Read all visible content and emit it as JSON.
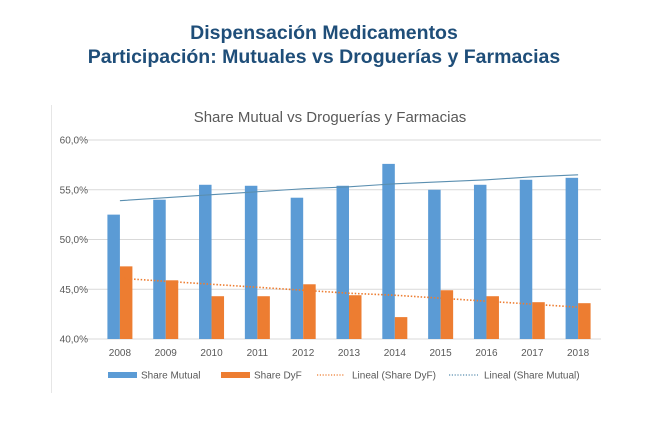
{
  "header": {
    "title_line1": "Dispensación Medicamentos",
    "title_line2": "Participación: Mutuales vs Droguerías y Farmacias"
  },
  "colors": {
    "title": "#1f4e79",
    "mutual": "#5b9bd5",
    "dyf": "#ed7d31",
    "trend_mutual": "#5b8fb0",
    "trend_dyf": "#ed7d31",
    "grid": "#d9d9d9",
    "text": "#595959"
  },
  "chart_data": {
    "type": "bar",
    "title": "Share Mutual vs Droguerías y Farmacias",
    "xlabel": "",
    "ylabel": "",
    "categories": [
      "2008",
      "2009",
      "2010",
      "2011",
      "2012",
      "2013",
      "2014",
      "2015",
      "2016",
      "2017",
      "2018"
    ],
    "series": [
      {
        "name": "Share Mutual",
        "kind": "bar",
        "values": [
          52.5,
          54.0,
          55.5,
          55.4,
          54.2,
          55.4,
          57.6,
          55.0,
          55.5,
          56.0,
          56.2
        ]
      },
      {
        "name": "Share DyF",
        "kind": "bar",
        "values": [
          47.3,
          45.9,
          44.3,
          44.3,
          45.5,
          44.4,
          42.2,
          44.9,
          44.3,
          43.7,
          43.6
        ]
      },
      {
        "name": "Lineal (Share DyF)",
        "kind": "trendline-dotted",
        "values": [
          46.1,
          45.8,
          45.5,
          45.2,
          44.9,
          44.6,
          44.4,
          44.1,
          43.8,
          43.5,
          43.2
        ]
      },
      {
        "name": "Lineal (Share Mutual)",
        "kind": "trendline",
        "values": [
          53.9,
          54.2,
          54.5,
          54.8,
          55.1,
          55.3,
          55.6,
          55.8,
          56.0,
          56.3,
          56.5
        ]
      }
    ],
    "ylim": [
      40,
      60
    ],
    "yticks": [
      "40,0%",
      "45,0%",
      "50,0%",
      "55,0%",
      "60,0%"
    ],
    "ytick_values": [
      40,
      45,
      50,
      55,
      60
    ],
    "grid": true,
    "legend": {
      "placement": "bottom",
      "entries": [
        "Share Mutual",
        "Share DyF",
        "Lineal (Share DyF)",
        "Lineal (Share Mutual)"
      ]
    }
  }
}
